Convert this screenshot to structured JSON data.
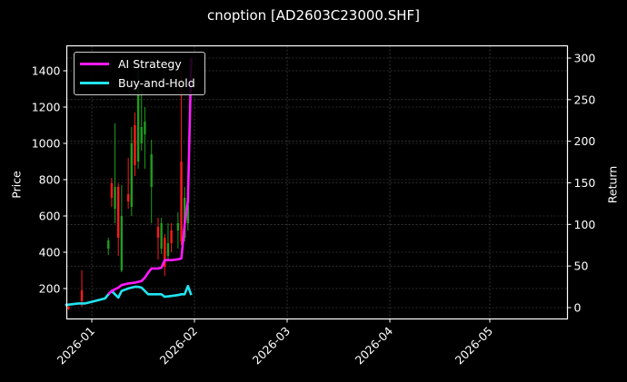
{
  "title": "cnoption [AD2603C23000.SHF]",
  "axes": {
    "left_label": "Price",
    "right_label": "Return",
    "left_ticks": [
      "200",
      "400",
      "600",
      "800",
      "1000",
      "1200",
      "1400"
    ],
    "right_ticks": [
      "0",
      "50",
      "100",
      "150",
      "200",
      "250",
      "300"
    ],
    "x_ticks": [
      "2026-01",
      "2026-02",
      "2026-03",
      "2026-04",
      "2026-05"
    ]
  },
  "legend": {
    "items": [
      {
        "label": "AI Strategy",
        "color": "#ff1aff"
      },
      {
        "label": "Buy-and-Hold",
        "color": "#22e4f0"
      }
    ]
  },
  "colors": {
    "background": "#000000",
    "up_candle": "#1e9e1e",
    "down_candle": "#ff1a1a",
    "grid": "#555555",
    "frame": "#ffffff"
  },
  "chart_data": {
    "type": "line",
    "title": "cnoption [AD2603C23000.SHF]",
    "xlabel": "",
    "ylabel": "Price",
    "ylabel_right": "Return",
    "ylim": [
      40,
      1540
    ],
    "ylim_right": [
      -13,
      315
    ],
    "xlim": [
      "2025-12-24",
      "2026-05-25"
    ],
    "grid": true,
    "legend_position": "upper left",
    "x_ticks": [
      "2026-01",
      "2026-02",
      "2026-03",
      "2026-04",
      "2026-05"
    ],
    "candlesticks": [
      {
        "date": "2025-12-25",
        "open": 100,
        "high": 105,
        "low": 82,
        "close": 88,
        "dir": "down"
      },
      {
        "date": "2025-12-29",
        "open": 190,
        "high": 300,
        "low": 100,
        "close": 130,
        "dir": "down"
      },
      {
        "date": "2026-01-06",
        "open": 420,
        "high": 480,
        "low": 385,
        "close": 465,
        "dir": "up"
      },
      {
        "date": "2026-01-07",
        "open": 780,
        "high": 810,
        "low": 650,
        "close": 700,
        "dir": "down"
      },
      {
        "date": "2026-01-08",
        "open": 640,
        "high": 1110,
        "low": 560,
        "close": 760,
        "dir": "up"
      },
      {
        "date": "2026-01-09",
        "open": 760,
        "high": 780,
        "low": 380,
        "close": 480,
        "dir": "down"
      },
      {
        "date": "2026-01-10",
        "open": 300,
        "high": 770,
        "low": 290,
        "close": 600,
        "dir": "up"
      },
      {
        "date": "2026-01-12",
        "open": 720,
        "high": 920,
        "low": 640,
        "close": 680,
        "dir": "down"
      },
      {
        "date": "2026-01-13",
        "open": 650,
        "high": 1090,
        "low": 600,
        "close": 1000,
        "dir": "up"
      },
      {
        "date": "2026-01-14",
        "open": 1100,
        "high": 1170,
        "low": 820,
        "close": 880,
        "dir": "down"
      },
      {
        "date": "2026-01-15",
        "open": 900,
        "high": 1420,
        "low": 860,
        "close": 1300,
        "dir": "up"
      },
      {
        "date": "2026-01-16",
        "open": 1000,
        "high": 1290,
        "low": 960,
        "close": 1090,
        "dir": "up"
      },
      {
        "date": "2026-01-17",
        "open": 1050,
        "high": 1200,
        "low": 860,
        "close": 1120,
        "dir": "up"
      },
      {
        "date": "2026-01-19",
        "open": 760,
        "high": 1020,
        "low": 560,
        "close": 940,
        "dir": "up"
      },
      {
        "date": "2026-01-21",
        "open": 540,
        "high": 590,
        "low": 360,
        "close": 480,
        "dir": "down"
      },
      {
        "date": "2026-01-22",
        "open": 420,
        "high": 590,
        "low": 390,
        "close": 560,
        "dir": "up"
      },
      {
        "date": "2026-01-23",
        "open": 480,
        "high": 500,
        "low": 270,
        "close": 320,
        "dir": "down"
      },
      {
        "date": "2026-01-24",
        "open": 380,
        "high": 560,
        "low": 360,
        "close": 450,
        "dir": "up"
      },
      {
        "date": "2026-01-25",
        "open": 520,
        "high": 560,
        "low": 400,
        "close": 450,
        "dir": "down"
      },
      {
        "date": "2026-01-27",
        "open": 560,
        "high": 620,
        "low": 420,
        "close": 520,
        "dir": "up"
      },
      {
        "date": "2026-01-28",
        "open": 460,
        "high": 1400,
        "low": 440,
        "close": 900,
        "dir": "down"
      },
      {
        "date": "2026-01-29",
        "open": 480,
        "high": 760,
        "low": 460,
        "close": 700,
        "dir": "up"
      },
      {
        "date": "2026-01-30",
        "open": 560,
        "high": 720,
        "low": 520,
        "close": 660,
        "dir": "up"
      }
    ],
    "series": [
      {
        "name": "AI Strategy",
        "axis": "right",
        "color": "#ff1aff",
        "x": [
          "2026-01-06",
          "2026-01-07",
          "2026-01-08",
          "2026-01-09",
          "2026-01-10",
          "2026-01-12",
          "2026-01-14",
          "2026-01-16",
          "2026-01-17",
          "2026-01-18",
          "2026-01-19",
          "2026-01-21",
          "2026-01-22",
          "2026-01-23",
          "2026-01-25",
          "2026-01-27",
          "2026-01-28",
          "2026-01-29",
          "2026-01-30",
          "2026-01-31"
        ],
        "values": [
          16,
          20,
          22,
          24,
          27,
          29,
          30,
          32,
          36,
          42,
          47,
          47,
          48,
          57,
          57,
          58,
          59,
          100,
          128,
          300
        ]
      },
      {
        "name": "Buy-and-Hold",
        "axis": "right",
        "color": "#22e4f0",
        "x": [
          "2025-12-24",
          "2025-12-26",
          "2025-12-28",
          "2025-12-30",
          "2026-01-01",
          "2026-01-03",
          "2026-01-05",
          "2026-01-06",
          "2026-01-07",
          "2026-01-08",
          "2026-01-09",
          "2026-01-10",
          "2026-01-12",
          "2026-01-14",
          "2026-01-15",
          "2026-01-16",
          "2026-01-18",
          "2026-01-20",
          "2026-01-22",
          "2026-01-23",
          "2026-01-25",
          "2026-01-27",
          "2026-01-28",
          "2026-01-29",
          "2026-01-30",
          "2026-01-31"
        ],
        "values": [
          3,
          4,
          5,
          5,
          7,
          9,
          11,
          16,
          20,
          16,
          12,
          20,
          23,
          25,
          25,
          24,
          16,
          16,
          16,
          13,
          14,
          15,
          16,
          16,
          26,
          15
        ]
      }
    ]
  }
}
